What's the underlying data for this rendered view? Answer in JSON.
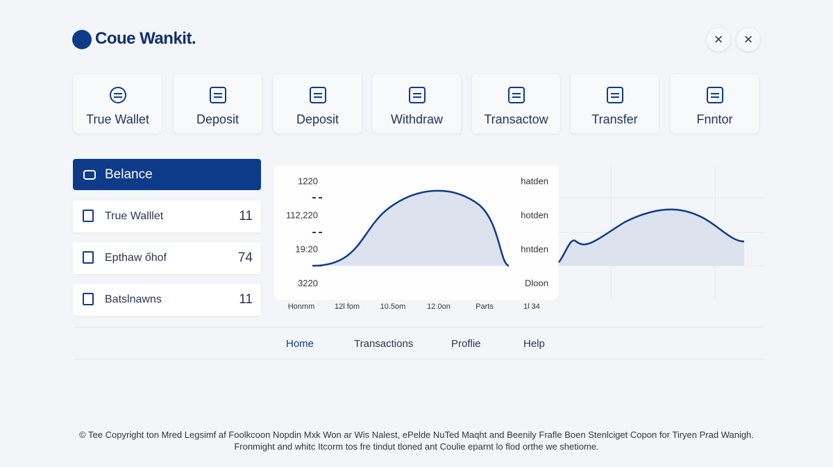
{
  "header": {
    "title": "Coue Wankit."
  },
  "actions": [
    "True Wallet",
    "Deposit",
    "Deposit",
    "Withdraw",
    "Transactow",
    "Transfer",
    "Fnntor"
  ],
  "sidebar": {
    "active": "Belance",
    "items": [
      {
        "label": "True Walllet",
        "value": 11
      },
      {
        "label": "Epthaw ốhof",
        "value": 74
      },
      {
        "label": "Batslnawns",
        "value": 11
      }
    ]
  },
  "chart": {
    "left_labels": [
      "1220",
      "112,220",
      "19:20",
      "3220"
    ],
    "right_labels": [
      "hatden",
      "hotden",
      "hntden",
      "Dloon"
    ],
    "x_labels": [
      "Honmm",
      "12l fom",
      "10.5om",
      "12.0on",
      "Parts",
      "1l 34"
    ]
  },
  "nav": [
    "Home",
    "Transactions",
    "Proflie",
    "Help"
  ],
  "footer": [
    "© Tee Copyright ton Mred Legsimf af Foolkcoon Nopdin Mxk Won ar Wis Nalest, ePelde NuTed Maqht and Beenily Frafle Boen Stenlciget Copon for Tiryen Prad Wanigh.",
    "Fronmight and whitc Itcorm tos fre tindut tloned ant Coulie eparnt lo flod orthe we shetiome."
  ]
}
